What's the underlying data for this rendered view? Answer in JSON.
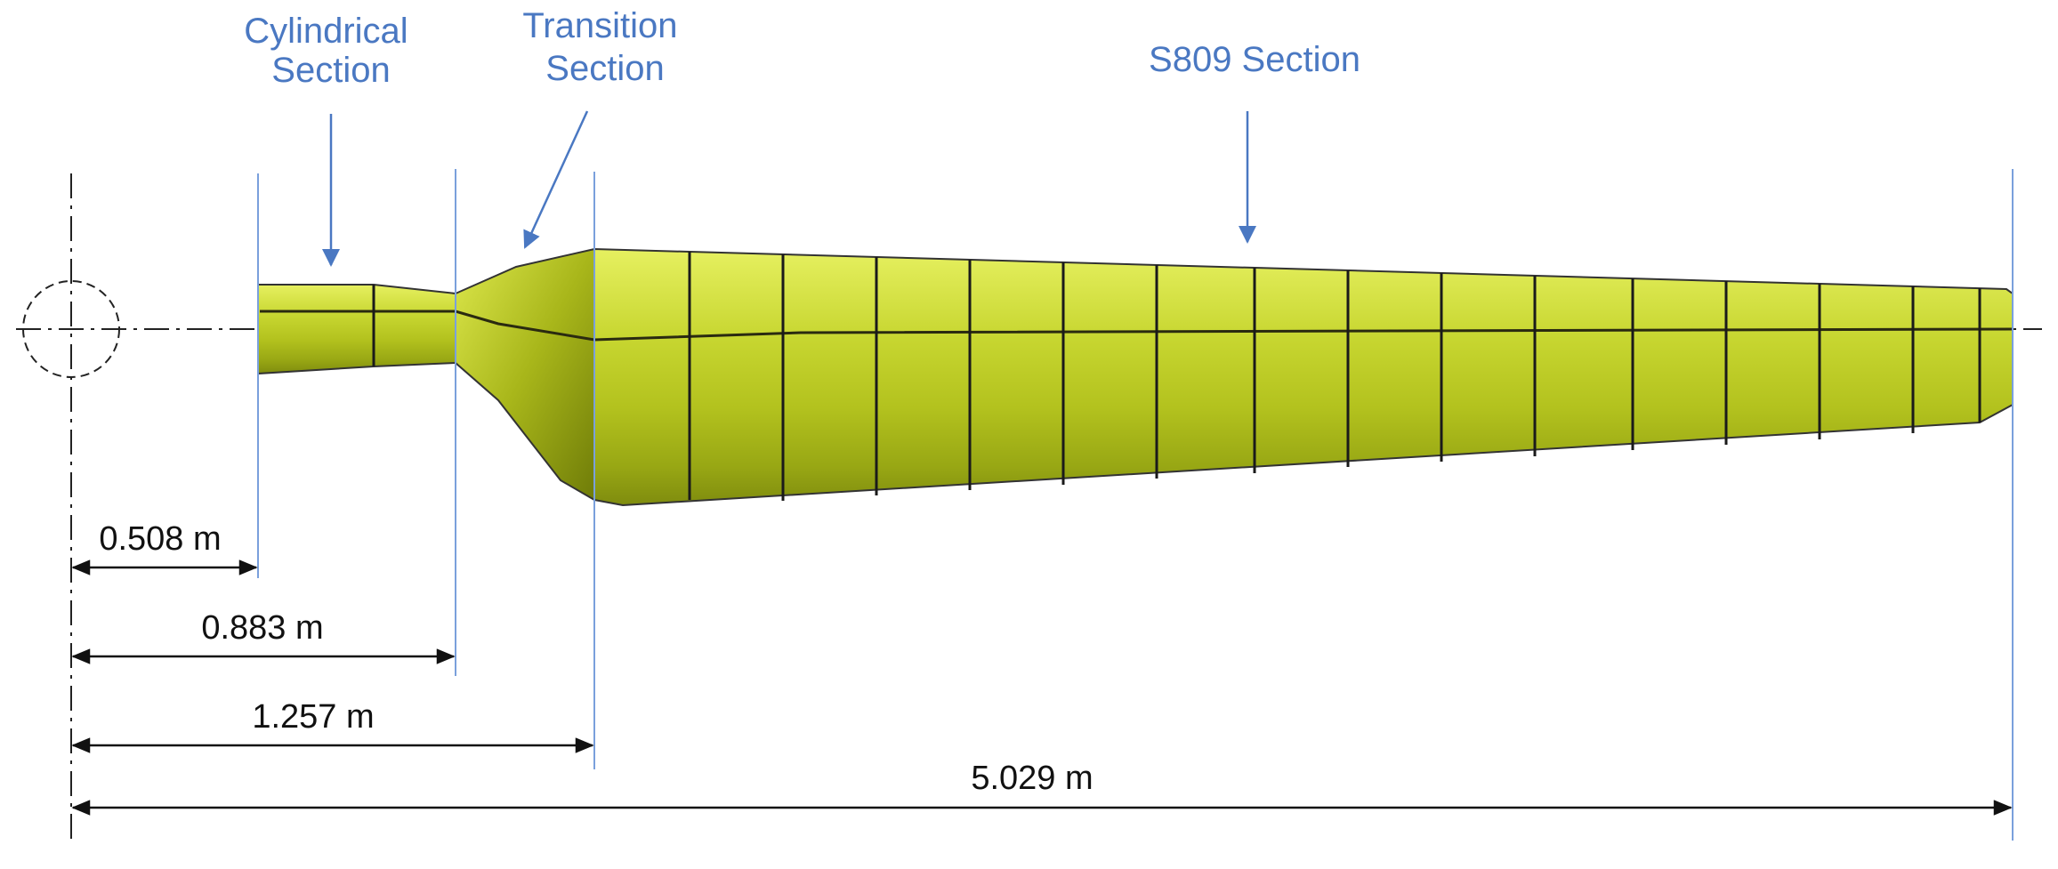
{
  "labels": {
    "cylindrical": [
      "Cylindrical",
      "Section"
    ],
    "transition": [
      "Transition",
      "Section"
    ],
    "s809": "S809 Section"
  },
  "dimensions": [
    {
      "id": "d0508",
      "text": "0.508 m",
      "value_m": 0.508
    },
    {
      "id": "d0883",
      "text": "0.883 m",
      "value_m": 0.883
    },
    {
      "id": "d1257",
      "text": "1.257 m",
      "value_m": 1.257
    },
    {
      "id": "d5029",
      "text": "5.029 m",
      "value_m": 5.029
    }
  ],
  "colors": {
    "label_blue": "#4a78c2",
    "guide_blue": "#7aa0dc",
    "blade_fill": "#c8d832",
    "blade_dark": "#8e9c12",
    "outline": "#1a1a1a"
  }
}
